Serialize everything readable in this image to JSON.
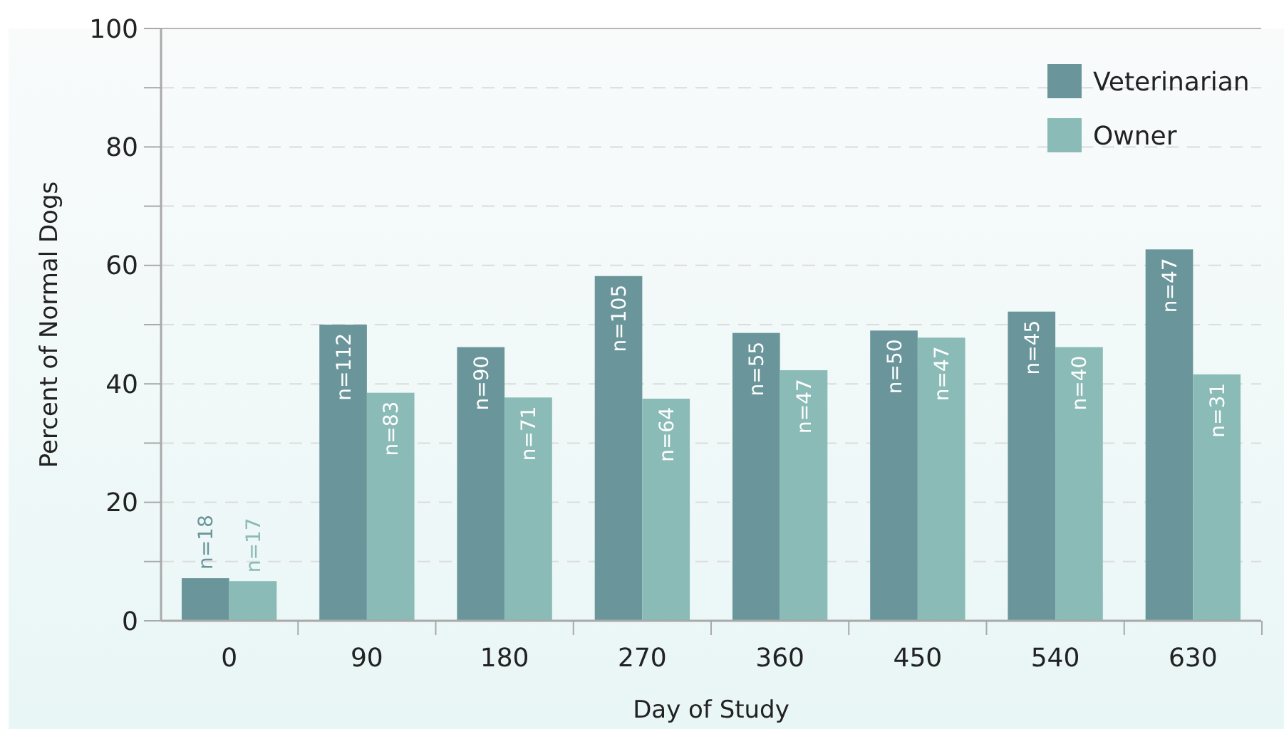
{
  "chart_data": {
    "type": "bar",
    "xlabel": "Day of Study",
    "ylabel": "Percent of Normal Dogs",
    "categories": [
      "0",
      "90",
      "180",
      "270",
      "360",
      "450",
      "540",
      "630"
    ],
    "series": [
      {
        "name": "Veterinarian",
        "color": "#6a969b",
        "values": [
          7.2,
          50,
          46.2,
          58.2,
          48.6,
          49,
          52.2,
          62.7
        ]
      },
      {
        "name": "Owner",
        "color": "#8abbb6",
        "values": [
          6.7,
          38.5,
          37.7,
          37.5,
          42.3,
          47.8,
          46.2,
          41.6
        ]
      }
    ],
    "annotations": [
      {
        "text": "n=18",
        "x": "0",
        "y": 7.2
      },
      {
        "text": "n=17",
        "x": "0",
        "y": 6.7
      },
      {
        "text": "n=112",
        "x": "90",
        "y": 50
      },
      {
        "text": "n=83",
        "x": "90",
        "y": 38.5
      },
      {
        "text": "n=90",
        "x": "180",
        "y": 46.2
      },
      {
        "text": "n=71",
        "x": "180",
        "y": 37.7
      },
      {
        "text": "n=105",
        "x": "270",
        "y": 58.2
      },
      {
        "text": "n=64",
        "x": "270",
        "y": 37.5
      },
      {
        "text": "n=55",
        "x": "360",
        "y": 48.6
      },
      {
        "text": "n=47",
        "x": "360",
        "y": 42.3
      },
      {
        "text": "n=50",
        "x": "450",
        "y": 49
      },
      {
        "text": "n=47",
        "x": "450",
        "y": 47.8
      },
      {
        "text": "n=45",
        "x": "540",
        "y": 52.2
      },
      {
        "text": "n=40",
        "x": "540",
        "y": 46.2
      },
      {
        "text": "n=47",
        "x": "630",
        "y": 62.7
      },
      {
        "text": "n=31",
        "x": "630",
        "y": 41.6
      }
    ],
    "ylim": [
      0,
      100
    ],
    "yticks": [
      0,
      {
        "value": 10,
        "label": null
      },
      20,
      {
        "value": 30,
        "label": null
      },
      40,
      {
        "value": 50,
        "label": null
      },
      60,
      {
        "value": 70,
        "label": null
      },
      80,
      {
        "value": 90,
        "label": null
      },
      100
    ],
    "grid": "y",
    "legend": "top right"
  }
}
